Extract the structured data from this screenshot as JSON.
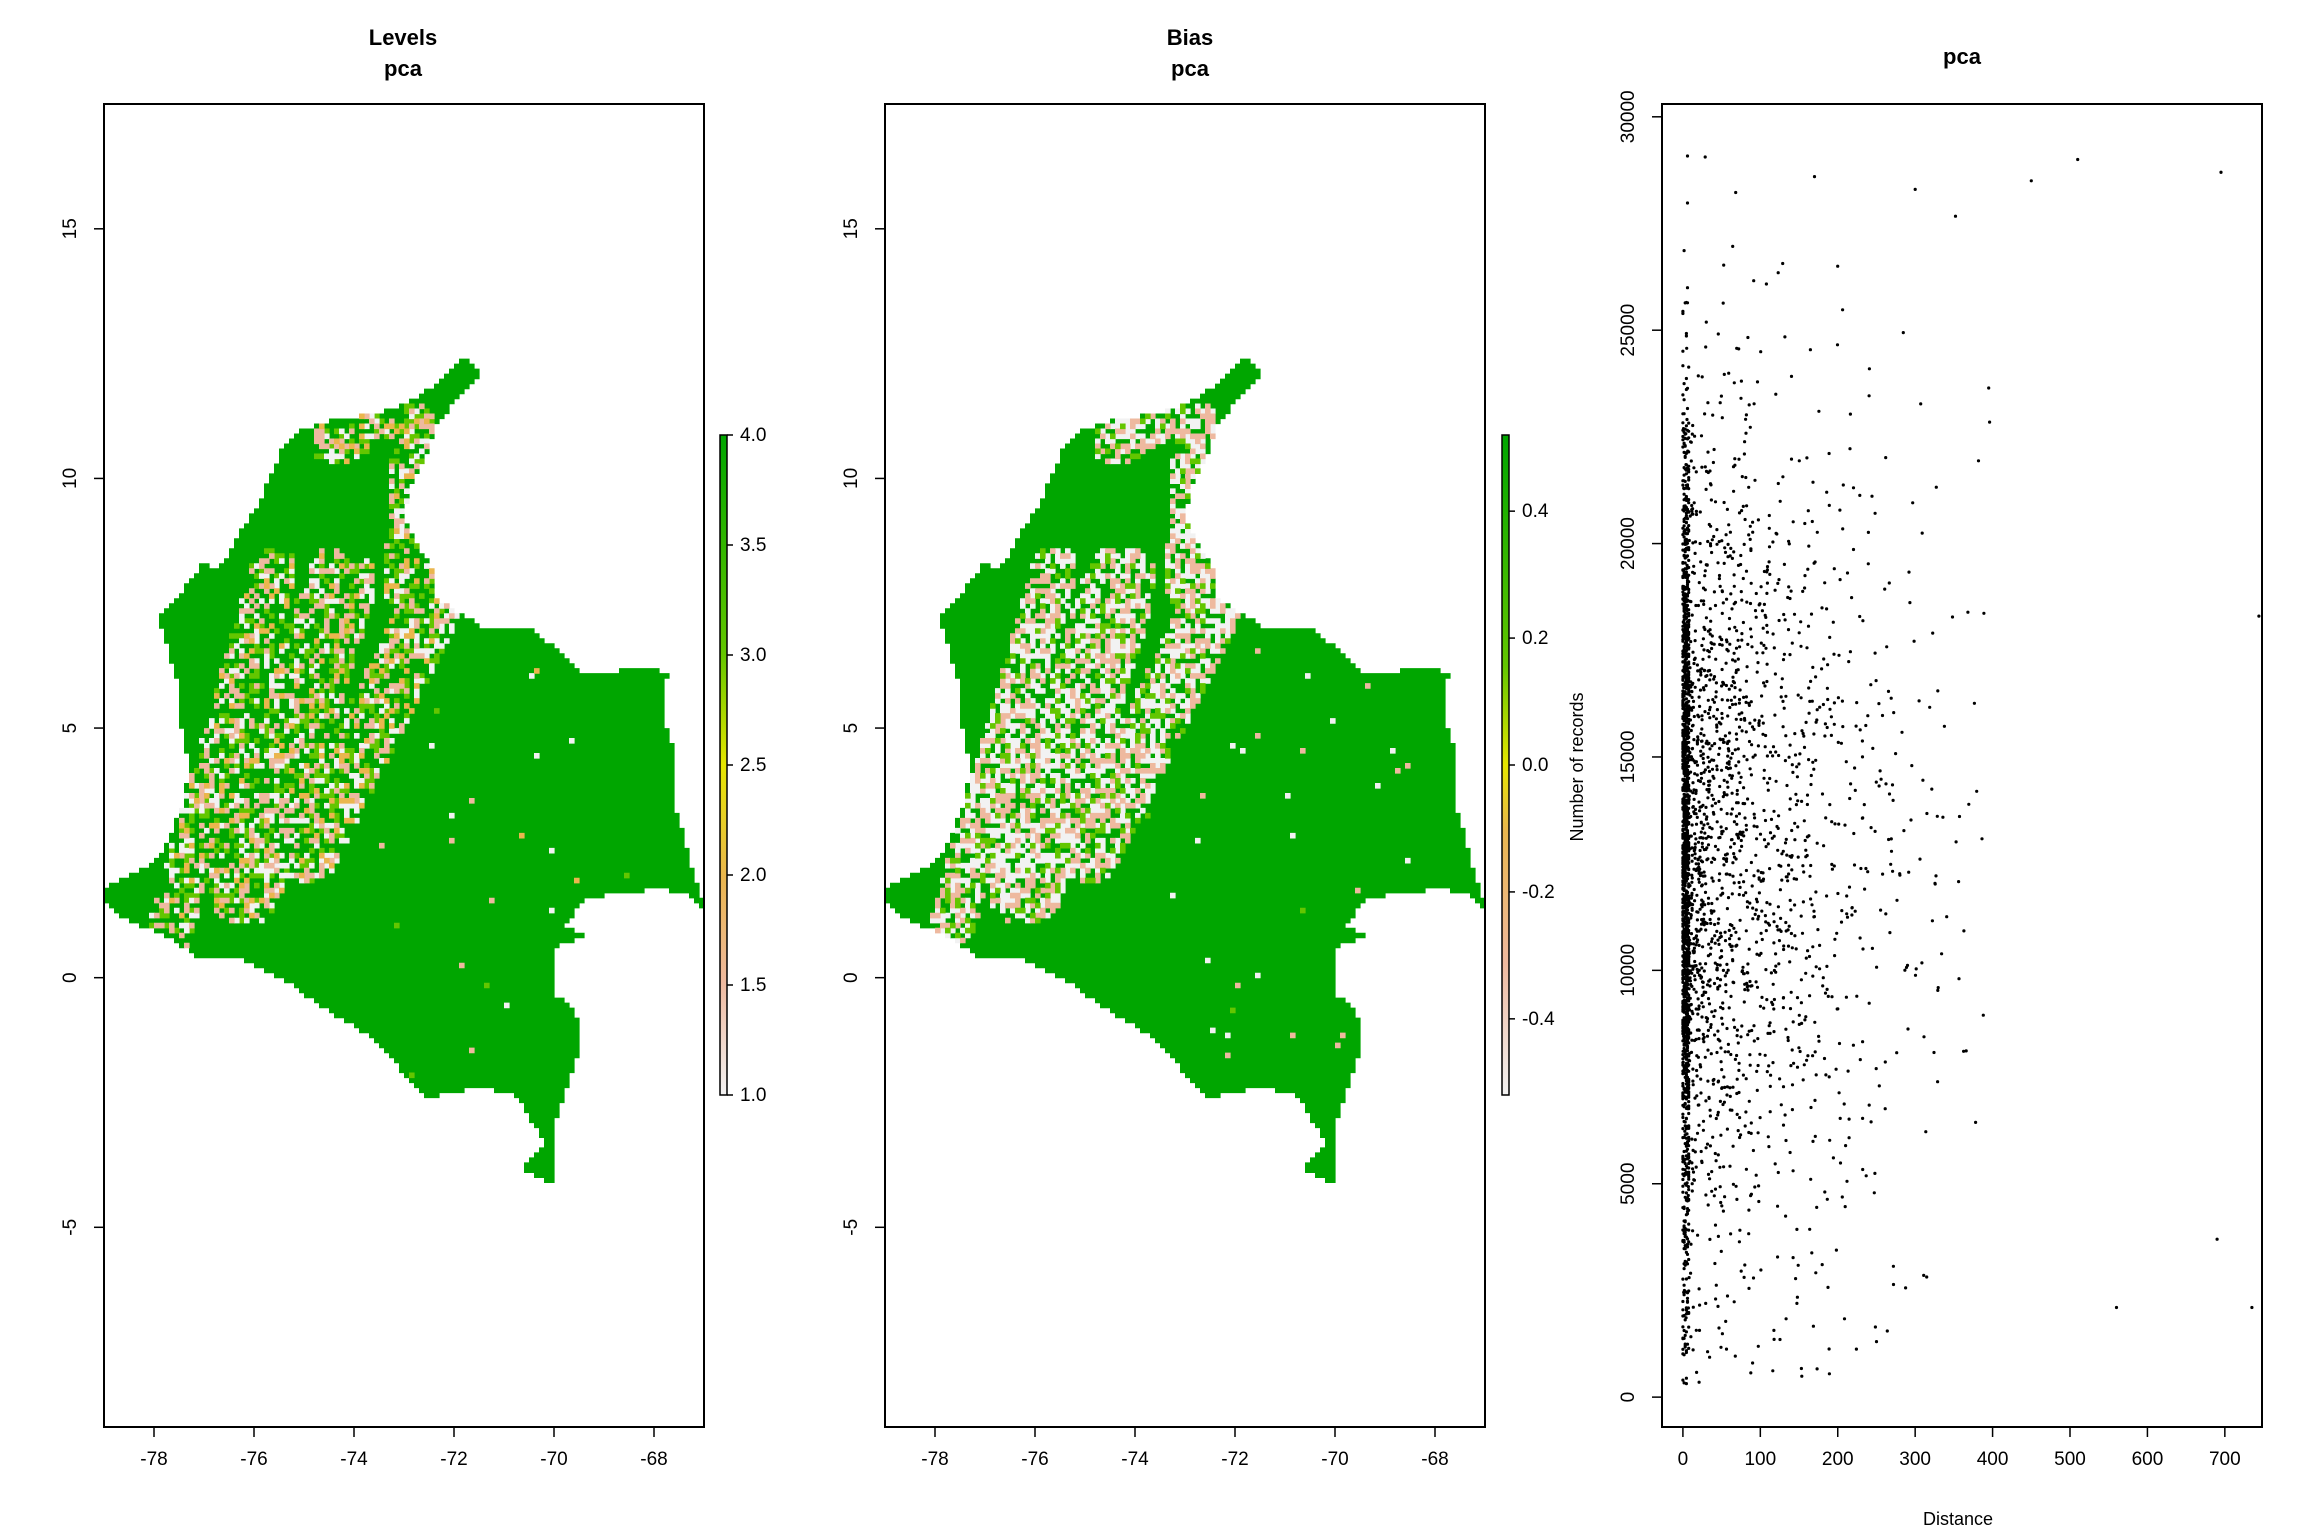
{
  "colors": {
    "map_green": "#00A600",
    "green_light": "#63C600",
    "yellow": "#E6E600",
    "tan": "#EAB64E",
    "peach": "#EEB99F",
    "white": "#F2F2F2",
    "black": "#000000"
  },
  "chart_data": [
    {
      "type": "heatmap",
      "title": "Levels",
      "subtitle": "pca",
      "xlim": [
        -79,
        -67
      ],
      "ylim": [
        -9,
        17.5
      ],
      "x_ticks": [
        "-78",
        "-76",
        "-74",
        "-72",
        "-70",
        "-68"
      ],
      "y_ticks": [
        "-5",
        "0",
        "5",
        "10",
        "15"
      ],
      "legend": {
        "range": [
          1.0,
          4.0
        ],
        "ticks": [
          "1.0",
          "1.5",
          "2.0",
          "2.5",
          "3.0",
          "3.5",
          "4.0"
        ],
        "label": ""
      }
    },
    {
      "type": "heatmap",
      "title": "Bias",
      "subtitle": "pca",
      "xlim": [
        -79,
        -67
      ],
      "ylim": [
        -9,
        17.5
      ],
      "x_ticks": [
        "-78",
        "-76",
        "-74",
        "-72",
        "-70",
        "-68"
      ],
      "y_ticks": [
        "-5",
        "0",
        "5",
        "10",
        "15"
      ],
      "legend": {
        "range": [
          -0.52,
          0.52
        ],
        "ticks": [
          "-0.4",
          "-0.2",
          "0.0",
          "0.2",
          "0.4"
        ],
        "label": "Number of records"
      }
    },
    {
      "type": "scatter",
      "title": "pca",
      "xlabel": "Distance",
      "ylabel": "",
      "xlim": [
        -27,
        748
      ],
      "ylim": [
        -700,
        30300
      ],
      "x_ticks": [
        "0",
        "100",
        "200",
        "300",
        "400",
        "500",
        "600",
        "700"
      ],
      "y_ticks": [
        "0",
        "5000",
        "10000",
        "15000",
        "20000",
        "25000",
        "30000"
      ],
      "grid": false,
      "point_count_estimate": 3500,
      "sample_points": [
        [
          0,
          400
        ],
        [
          3,
          1200
        ],
        [
          8,
          2800
        ],
        [
          12,
          5000
        ],
        [
          18,
          8000
        ],
        [
          25,
          12000
        ],
        [
          40,
          14500
        ],
        [
          60,
          18000
        ],
        [
          90,
          20500
        ],
        [
          120,
          23500
        ],
        [
          170,
          28600
        ],
        [
          200,
          26500
        ],
        [
          300,
          28300
        ],
        [
          450,
          28500
        ],
        [
          510,
          29000
        ],
        [
          695,
          28700
        ],
        [
          90,
          800
        ],
        [
          250,
          1300
        ],
        [
          560,
          2100
        ],
        [
          735,
          2100
        ],
        [
          690,
          3700
        ],
        [
          744,
          18300
        ]
      ]
    }
  ]
}
